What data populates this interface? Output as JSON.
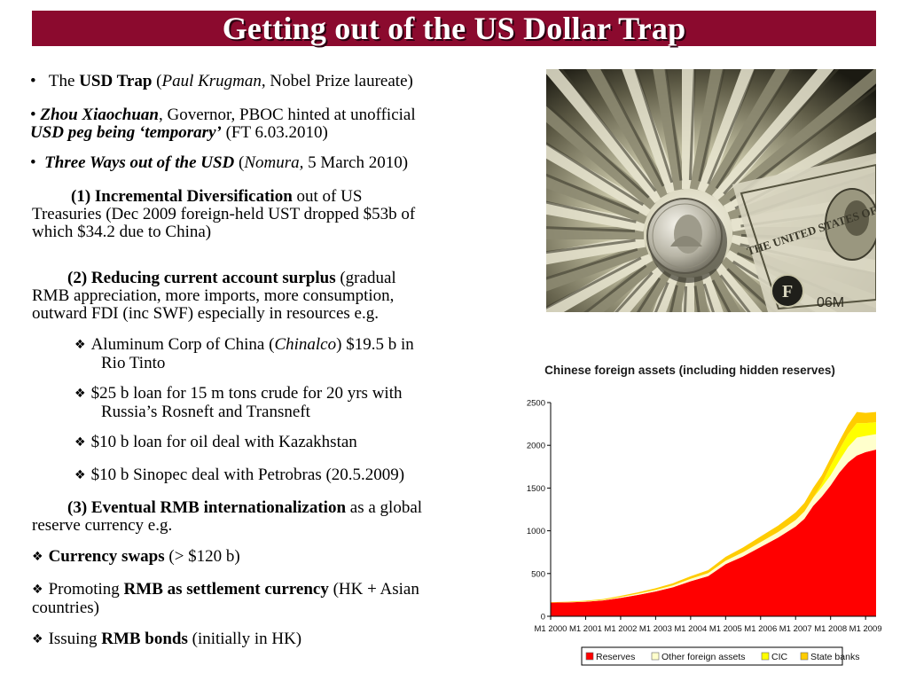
{
  "slide": {
    "title": "Getting out of the US Dollar Trap"
  },
  "bullets": {
    "b1": {
      "bullet": "•",
      "pre": "The ",
      "bold": "USD Trap",
      "mid": " (",
      "ital": "Paul Krugman",
      "post": ", Nobel Prize laureate)"
    },
    "b2": {
      "bullet": "•",
      "bi": "Zhou Xiaochuan",
      "post": ", Governor, PBOC hinted at unofficial",
      "bi2": "USD peg being ‘temporary’",
      "post2": " (FT 6.03.2010)"
    },
    "b3": {
      "bullet": "•",
      "bi": "Three Ways out of the USD",
      "mid": " (",
      "ital": "Nomura,",
      "post": " 5 March 2010)"
    }
  },
  "ways": {
    "w1": {
      "num": "(1) ",
      "bold": "Incremental Diversification",
      "post": " out of US",
      "line2": "Treasuries (Dec 2009 foreign-held UST dropped $53b of",
      "line3": "which $34.2 due to China)"
    },
    "w2": {
      "num": "(2) ",
      "bold": "Reducing current account surplus",
      "post": " (gradual",
      "line2": "RMB appreciation, more imports,  more consumption,",
      "line3": "outward FDI (inc SWF) especially in resources e.g."
    },
    "w3": {
      "num": "(3) ",
      "bold": "Eventual RMB internationalization",
      "post": " as a global",
      "line2": "reserve currency e.g."
    }
  },
  "examples": [
    {
      "glyph": "❖",
      "pre": "Aluminum Corp of China (",
      "ital": "Chinalco",
      "post": ") $19.5 b in",
      "line2": "Rio Tinto"
    },
    {
      "glyph": "❖",
      "pre": "$25 b loan for 15 m tons crude for 20 yrs with",
      "line2": "Russia’s Rosneft and Transneft"
    },
    {
      "glyph": "❖",
      "pre": "$10 b loan for oil deal with Kazakhstan"
    },
    {
      "glyph": "❖",
      "pre": "$10 b Sinopec deal with Petrobras (20.5.2009)"
    }
  ],
  "internationalization": [
    {
      "glyph": "❖",
      "bold": "Currency swaps",
      "post": " (> $120 b)"
    },
    {
      "glyph": "❖",
      "pre": "Promoting ",
      "bold": "RMB as settlement currency",
      "post": " (HK + Asian",
      "line2": "countries)"
    },
    {
      "glyph": "❖",
      "pre": "Issuing ",
      "bold": "RMB bonds",
      "post": " (initially in HK)"
    }
  ],
  "photo": {
    "subject": "dollar-bills-and-coin-photo"
  },
  "chart_data": {
    "type": "area",
    "title": "Chinese foreign assets (including hidden reserves)",
    "xlabel": "",
    "ylabel": "",
    "ylim": [
      0,
      2500
    ],
    "yticks": [
      "0",
      "500",
      "1000",
      "1500",
      "2000",
      "2500"
    ],
    "xticks": [
      "M1 2000",
      "M1 2001",
      "M1 2002",
      "M1 2003",
      "M1 2004",
      "M1 2005",
      "M1 2006",
      "M1 2007",
      "M1 2008",
      "M1 2009"
    ],
    "stacked": true,
    "grid": false,
    "legend": "bottom",
    "x": [
      2000,
      2000.5,
      2001,
      2001.5,
      2002,
      2002.5,
      2003,
      2003.5,
      2004,
      2004.5,
      2005,
      2005.5,
      2006,
      2006.5,
      2007,
      2007.25,
      2007.5,
      2007.75,
      2008,
      2008.25,
      2008.5,
      2008.75,
      2009,
      2009.3
    ],
    "series": [
      {
        "name": "Reserves",
        "color": "#ff0000",
        "values": [
          160,
          162,
          170,
          185,
          215,
          250,
          290,
          340,
          410,
          470,
          610,
          700,
          810,
          920,
          1050,
          1140,
          1290,
          1400,
          1530,
          1680,
          1800,
          1880,
          1920,
          1950
        ]
      },
      {
        "name": "Other foreign assets",
        "color": "#ffffcc",
        "values": [
          0,
          2,
          4,
          6,
          10,
          14,
          18,
          22,
          28,
          34,
          40,
          50,
          58,
          66,
          75,
          85,
          95,
          110,
          120,
          140,
          180,
          210,
          190,
          180
        ]
      },
      {
        "name": "CIC",
        "color": "#ffff00",
        "values": [
          0,
          0,
          0,
          0,
          0,
          0,
          0,
          0,
          0,
          0,
          0,
          0,
          0,
          0,
          0,
          0,
          0,
          40,
          110,
          130,
          150,
          170,
          150,
          140
        ]
      },
      {
        "name": "State banks",
        "color": "#ffcc00",
        "values": [
          5,
          6,
          8,
          10,
          13,
          16,
          20,
          25,
          30,
          35,
          45,
          55,
          65,
          75,
          90,
          100,
          115,
          100,
          90,
          100,
          110,
          130,
          120,
          120
        ]
      }
    ]
  }
}
